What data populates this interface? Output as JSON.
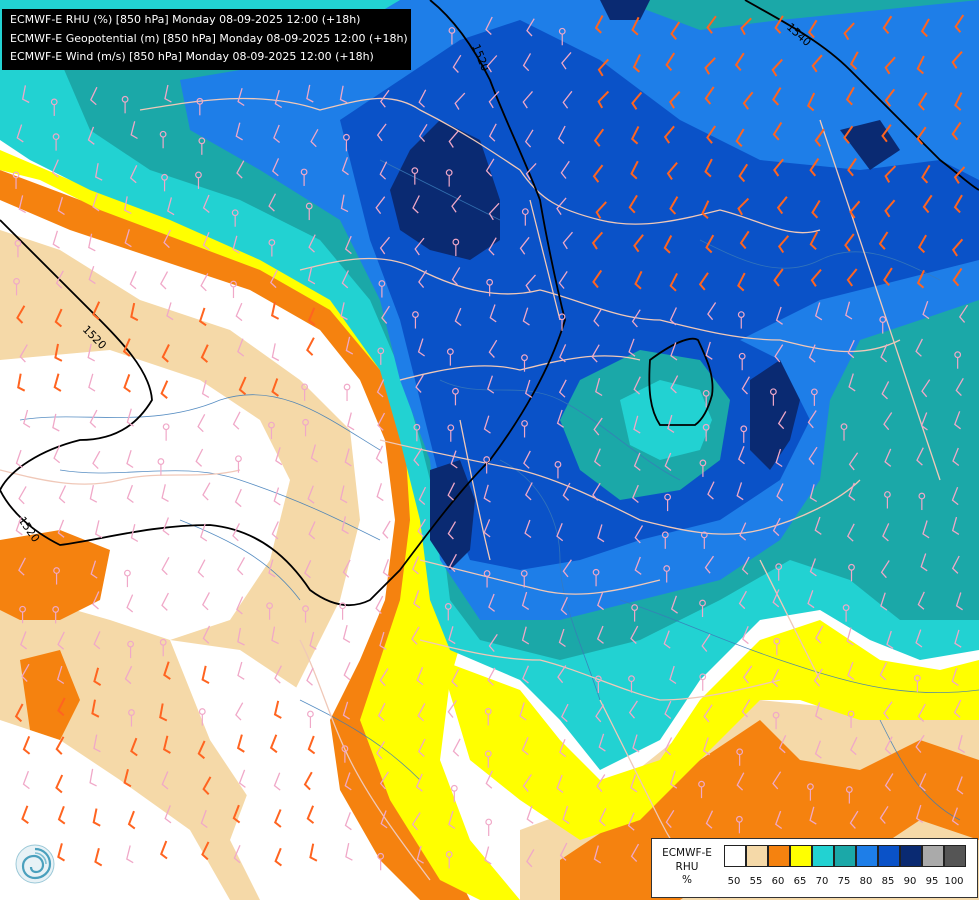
{
  "header": {
    "lines": [
      "ECMWF-E RHU (%) [850 hPa] Monday 08-09-2025 12:00 (+18h)",
      "ECMWF-E Geopotential (m) [850 hPa] Monday 08-09-2025 12:00 (+18h)",
      "ECMWF-E Wind (m/s) [850 hPa] Monday 08-09-2025 12:00 (+18h)"
    ]
  },
  "contours": {
    "labels": [
      "1520",
      "1520",
      "1520",
      "1540"
    ],
    "line_color": "#000000"
  },
  "legend": {
    "title_lines": [
      "ECMWF-E",
      "RHU",
      "%"
    ],
    "colors": [
      "#ffffff",
      "#f5d9a8",
      "#f5820f",
      "#ffff00",
      "#22d2d2",
      "#1ba8a8",
      "#1e7ee8",
      "#0a52c8",
      "#0a2a72",
      "#aaaaaa",
      "#555555"
    ],
    "ticks": [
      "50",
      "55",
      "60",
      "65",
      "70",
      "75",
      "80",
      "85",
      "90",
      "95",
      "100"
    ]
  },
  "colors": {
    "border_lines": "#f0c8b8",
    "rivers": "#3a7ab8",
    "barbs_light": "#f0a8c8",
    "barbs_strong": "#ff6420"
  },
  "logo": {
    "name": "ecmwf-style-swirl-logo"
  }
}
